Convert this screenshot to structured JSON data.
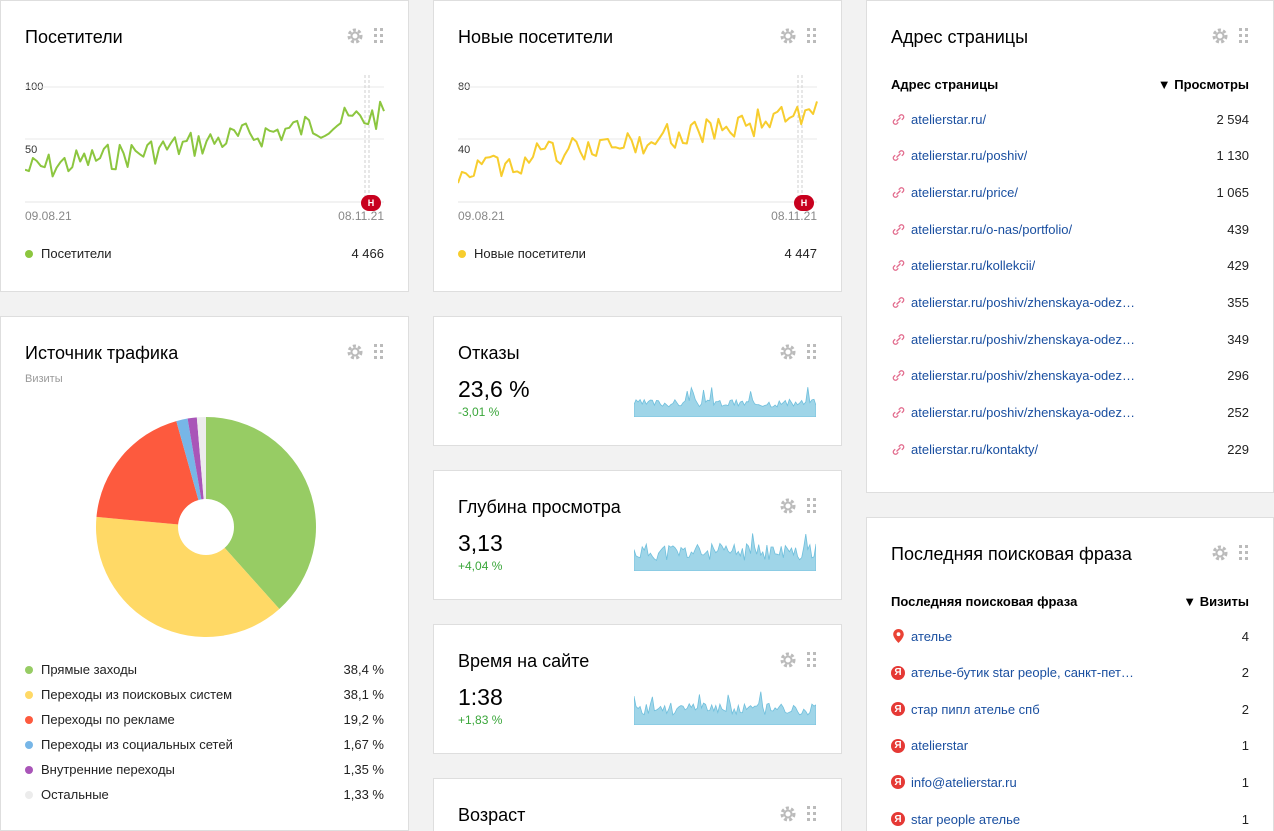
{
  "icons": {
    "gear": "gear-icon",
    "drag": "drag-handle-icon",
    "direct_visit": "link-icon",
    "search_ya": "yandex-icon",
    "search_google": "google-maps-icon"
  },
  "colors": {
    "visitors": "#8cc63f",
    "new_visitors": "#f7cd2e",
    "spark": "#9fd5e8",
    "link": "#1a4fa0",
    "positive": "#3aa63a"
  },
  "visitors": {
    "title": "Посетители",
    "y_ticks": [
      "100",
      "50"
    ],
    "date_start": "09.08.21",
    "date_end": "08.11.21",
    "badge": "Н",
    "legend_label": "Посетители",
    "legend_value": "4 466"
  },
  "new_visitors": {
    "title": "Новые посетители",
    "y_ticks": [
      "80",
      "40"
    ],
    "date_start": "09.08.21",
    "date_end": "08.11.21",
    "badge": "Н",
    "legend_label": "Новые посетители",
    "legend_value": "4 447"
  },
  "traffic": {
    "title": "Источник трафика",
    "subtitle": "Визиты",
    "items": [
      {
        "label": "Прямые заходы",
        "value": "38,4 %",
        "color": "#97cc64"
      },
      {
        "label": "Переходы из поисковых систем",
        "value": "38,1 %",
        "color": "#ffd966"
      },
      {
        "label": "Переходы по рекламе",
        "value": "19,2 %",
        "color": "#fd5a3e"
      },
      {
        "label": "Переходы из социальных сетей",
        "value": "1,67 %",
        "color": "#77b6e7"
      },
      {
        "label": "Внутренние переходы",
        "value": "1,35 %",
        "color": "#a955b8"
      },
      {
        "label": "Остальные",
        "value": "1,33 %",
        "color": "#ececec"
      }
    ]
  },
  "bounce": {
    "title": "Отказы",
    "value": "23,6 %",
    "delta": "-3,01 %"
  },
  "depth": {
    "title": "Глубина просмотра",
    "value": "3,13",
    "delta": "+4,04 %"
  },
  "time": {
    "title": "Время на сайте",
    "value": "1:38",
    "delta": "+1,83 %"
  },
  "age": {
    "title": "Возраст"
  },
  "pages": {
    "title": "Адрес страницы",
    "col_name": "Адрес страницы",
    "col_value": "▼ Просмотры",
    "rows": [
      {
        "url": "atelierstar.ru/",
        "views": "2 594"
      },
      {
        "url": "atelierstar.ru/poshiv/",
        "views": "1 130"
      },
      {
        "url": "atelierstar.ru/price/",
        "views": "1 065"
      },
      {
        "url": "atelierstar.ru/o-nas/portfolio/",
        "views": "439"
      },
      {
        "url": "atelierstar.ru/kollekcii/",
        "views": "429"
      },
      {
        "url": "atelierstar.ru/poshiv/zhenskaya-odez…",
        "views": "355"
      },
      {
        "url": "atelierstar.ru/poshiv/zhenskaya-odez…",
        "views": "349"
      },
      {
        "url": "atelierstar.ru/poshiv/zhenskaya-odez…",
        "views": "296"
      },
      {
        "url": "atelierstar.ru/poshiv/zhenskaya-odez…",
        "views": "252"
      },
      {
        "url": "atelierstar.ru/kontakty/",
        "views": "229"
      }
    ]
  },
  "search": {
    "title": "Последняя поисковая фраза",
    "col_name": "Последняя поисковая фраза",
    "col_value": "▼ Визиты",
    "rows": [
      {
        "phrase": "ателье",
        "visits": "4",
        "engine": "google-maps-icon"
      },
      {
        "phrase": "ателье-бутик star people, санкт-пете…",
        "visits": "2",
        "engine": "yandex-icon"
      },
      {
        "phrase": "стар пипл ателье спб",
        "visits": "2",
        "engine": "yandex-icon"
      },
      {
        "phrase": "atelierstar",
        "visits": "1",
        "engine": "yandex-icon"
      },
      {
        "phrase": "info@atelierstar.ru",
        "visits": "1",
        "engine": "yandex-icon"
      },
      {
        "phrase": "star people ателье",
        "visits": "1",
        "engine": "yandex-icon"
      }
    ],
    "yandex_letter": "Я"
  }
}
